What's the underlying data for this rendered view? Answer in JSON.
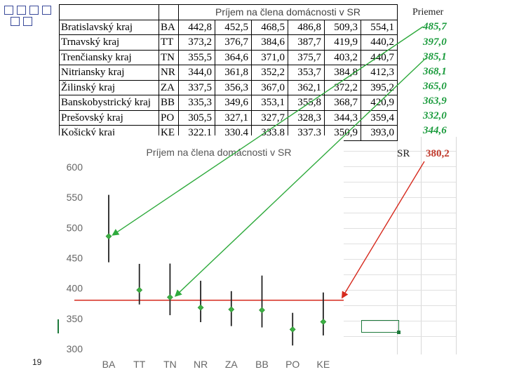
{
  "table": {
    "title": "Príjem  na člena domácnosti v SR",
    "rows": [
      {
        "region": "Bratislavský kraj",
        "code": "BA",
        "values": [
          "442,8",
          "452,5",
          "468,5",
          "486,8",
          "509,3",
          "554,1"
        ]
      },
      {
        "region": "Trnavský kraj",
        "code": "TT",
        "values": [
          "373,2",
          "376,7",
          "384,6",
          "387,7",
          "419,9",
          "440,2"
        ]
      },
      {
        "region": "Trenčiansky kraj",
        "code": "TN",
        "values": [
          "355,5",
          "364,6",
          "371,0",
          "375,7",
          "403,2",
          "440,7"
        ]
      },
      {
        "region": "Nitriansky kraj",
        "code": "NR",
        "values": [
          "344,0",
          "361,8",
          "352,2",
          "353,7",
          "384,8",
          "412,3"
        ]
      },
      {
        "region": "Žilinský kraj",
        "code": "ZA",
        "values": [
          "337,5",
          "356,3",
          "367,0",
          "362,1",
          "372,2",
          "395,2"
        ]
      },
      {
        "region": "Banskobystrický kraj",
        "code": "BB",
        "values": [
          "335,3",
          "349,6",
          "353,1",
          "355,8",
          "368,7",
          "420,9"
        ]
      },
      {
        "region": "Prešovský kraj",
        "code": "PO",
        "values": [
          "305,5",
          "327,1",
          "327,7",
          "328,3",
          "344,3",
          "359,4"
        ]
      },
      {
        "region": "Košický kraj",
        "code": "KE",
        "values": [
          "322,1",
          "330,4",
          "333,8",
          "337,3",
          "350,9",
          "393,0"
        ]
      }
    ]
  },
  "prumer": {
    "header": "Priemer",
    "values": [
      "485,7",
      "397,0",
      "385,1",
      "368,1",
      "365,0",
      "363,9",
      "332,0",
      "344,6"
    ]
  },
  "sr": {
    "label": "SR",
    "value": "380,2"
  },
  "page_number": "19",
  "colors": {
    "marker": "#3cb043",
    "sr_line": "#d62a1e",
    "arrow_green": "#2eaa3c",
    "arrow_red": "#d62a1e",
    "error_bar": "#222222"
  },
  "chart_data": {
    "type": "scatter",
    "title": "Príjem  na člena domácnosti v SR",
    "categories": [
      "BA",
      "TT",
      "TN",
      "NR",
      "ZA",
      "BB",
      "PO",
      "KE"
    ],
    "series": [
      {
        "values": [
          485.7,
          397.0,
          385.1,
          368.1,
          365.0,
          363.9,
          332.0,
          344.6
        ]
      }
    ],
    "error_range": {
      "min": [
        442.8,
        373.2,
        355.5,
        344.0,
        337.5,
        335.3,
        305.5,
        322.1
      ],
      "max": [
        554.1,
        440.2,
        440.7,
        412.3,
        395.2,
        420.9,
        359.4,
        393.0
      ]
    },
    "reference_line": 380.2,
    "yticks": [
      "300",
      "350",
      "400",
      "450",
      "500",
      "550",
      "600"
    ],
    "ylim": [
      300,
      600
    ],
    "xlabel": "",
    "ylabel": "",
    "grid": false,
    "legend": "none"
  }
}
